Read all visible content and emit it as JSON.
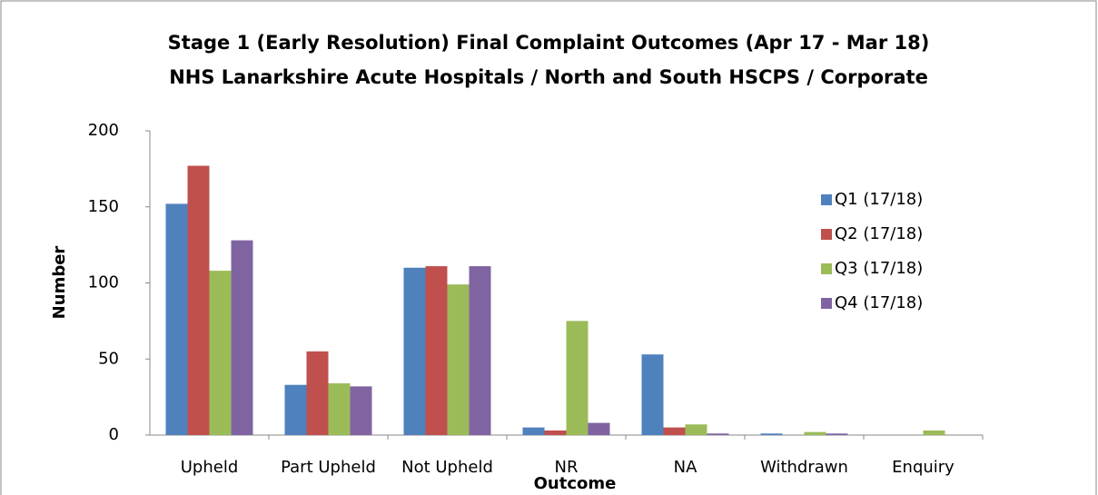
{
  "chart_data": {
    "type": "bar",
    "title": "Stage 1 (Early Resolution) Final Complaint Outcomes  (Apr 17 - Mar 18)",
    "subtitle": "NHS Lanarkshire Acute Hospitals / North and South HSCPS / Corporate",
    "y_label": "Number",
    "x_label": "Outcome",
    "categories": [
      "Upheld",
      "Part Upheld",
      "Not Upheld",
      "NR",
      "NA",
      "Withdrawn",
      "Enquiry"
    ],
    "series": [
      {
        "name": "Q1 (17/18)",
        "color": "#4f81bd",
        "values": [
          152,
          33,
          110,
          5,
          53,
          1,
          0
        ]
      },
      {
        "name": "Q2 (17/18)",
        "color": "#c0504d",
        "values": [
          177,
          55,
          111,
          3,
          5,
          0,
          0
        ]
      },
      {
        "name": "Q3 (17/18)",
        "color": "#9bbb59",
        "values": [
          108,
          34,
          99,
          75,
          7,
          2,
          3
        ]
      },
      {
        "name": "Q4 (17/18)",
        "color": "#8064a2",
        "values": [
          128,
          32,
          111,
          8,
          1,
          1,
          0
        ]
      }
    ],
    "ylim": [
      0,
      200
    ],
    "yticks": [
      0,
      50,
      100,
      150,
      200
    ],
    "grid": false,
    "legend": "right"
  }
}
